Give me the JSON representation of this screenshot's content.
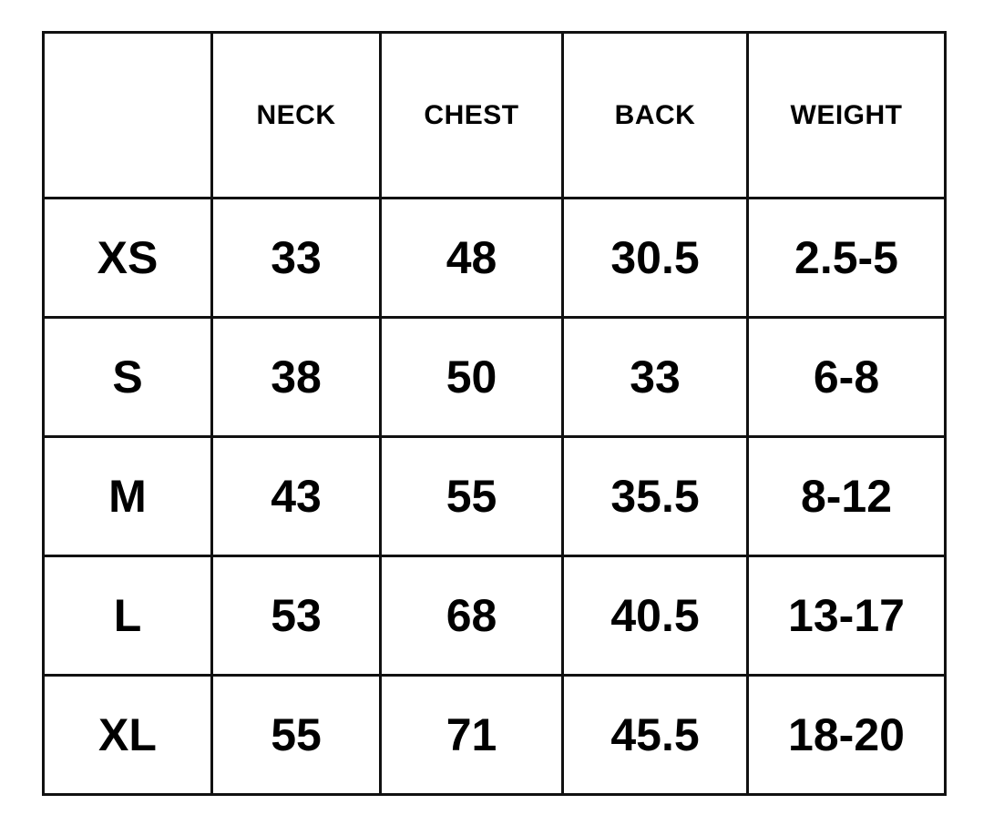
{
  "table": {
    "headers": [
      "",
      "NECK",
      "CHEST",
      "BACK",
      "WEIGHT"
    ],
    "rows": [
      [
        "XS",
        "33",
        "48",
        "30.5",
        "2.5-5"
      ],
      [
        "S",
        "38",
        "50",
        "33",
        "6-8"
      ],
      [
        "M",
        "43",
        "55",
        "35.5",
        "8-12"
      ],
      [
        "L",
        "53",
        "68",
        "40.5",
        "13-17"
      ],
      [
        "XL",
        "55",
        "71",
        "45.5",
        "18-20"
      ]
    ]
  }
}
